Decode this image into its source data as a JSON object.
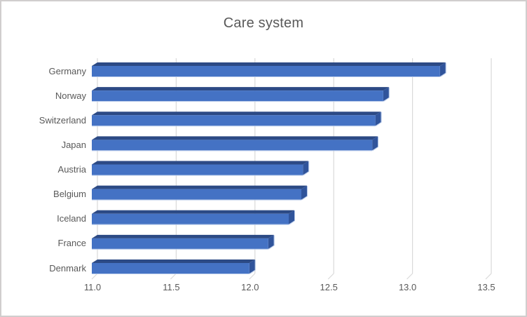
{
  "window": {
    "background": "#ffffff",
    "border_color": "#d0cece"
  },
  "chart_data": {
    "type": "bar",
    "orientation": "horizontal",
    "style": "3d",
    "title": "Care system",
    "categories": [
      "Germany",
      "Norway",
      "Switzerland",
      "Japan",
      "Austria",
      "Belgium",
      "Iceland",
      "France",
      "Denmark"
    ],
    "values": [
      13.21,
      12.85,
      12.8,
      12.78,
      12.34,
      12.33,
      12.25,
      12.12,
      12.0
    ],
    "xlabel": "",
    "ylabel": "",
    "xlim": [
      11.0,
      13.5
    ],
    "x_ticks": [
      11.0,
      11.5,
      12.0,
      12.5,
      13.0,
      13.5
    ],
    "x_tick_labels": [
      "11.0",
      "11.5",
      "12.0",
      "12.5",
      "13.0",
      "13.5"
    ],
    "grid": true,
    "legend": false,
    "colors": {
      "bar_front": "#4472c4",
      "bar_top": "#2c4a85",
      "bar_side": "#30549b",
      "bar_edge_light": "#b6c9ea",
      "gridline": "#d9d9d9",
      "text": "#595959",
      "title_text": "#595959"
    }
  }
}
